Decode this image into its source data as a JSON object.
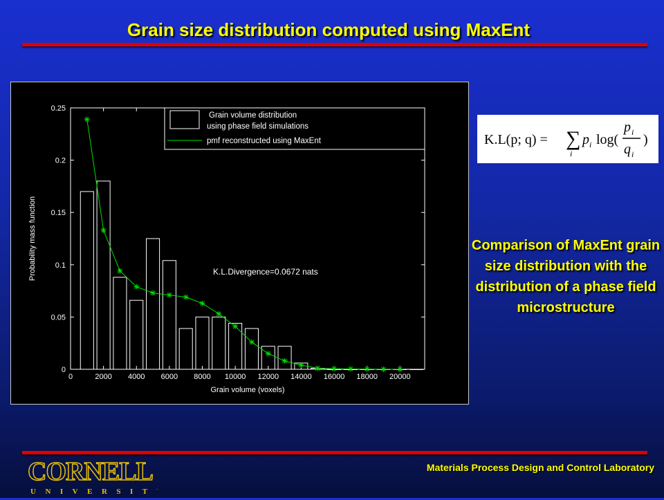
{
  "slide": {
    "title": "Grain size distribution computed using MaxEnt",
    "comparison_text": "Comparison of MaxEnt grain size distribution with the distribution of a phase field microstructure",
    "footer_lab": "Materials Process Design and Control Laboratory",
    "logo": {
      "word": "CORNELL",
      "sub": "UNIVERSITY"
    },
    "formula": {
      "lhs": "K.L(p; q) =",
      "sum": "∑",
      "sum_index": "i",
      "p": "p",
      "q": "q",
      "sub_i": "i",
      "log": "log(",
      "close": ")"
    },
    "colors": {
      "title": "#ffff00",
      "accent_line": "#e00000",
      "series_line": "#00e000"
    }
  },
  "chart_data": {
    "type": "bar",
    "xlabel": "Grain volume (voxels)",
    "ylabel": "Probability mass function",
    "xlim": [
      0,
      21500
    ],
    "ylim": [
      0,
      0.25
    ],
    "xticks": [
      0,
      2000,
      4000,
      6000,
      8000,
      10000,
      12000,
      14000,
      16000,
      18000,
      20000
    ],
    "yticks": [
      0,
      0.05,
      0.1,
      0.15,
      0.2,
      0.25
    ],
    "ytick_labels": [
      "0",
      "0.05",
      "0.1",
      "0.15",
      "0.2",
      "0.25"
    ],
    "annotation": "K.L.Divergence=0.0672 nats",
    "legend": {
      "position": "top-right",
      "bar_label_1": "Grain volume distribution",
      "bar_label_2": "using phase field simulations",
      "line_label": "pmf reconstructed using MaxEnt"
    },
    "bar_width": 800,
    "bars": {
      "x": [
        1000,
        2000,
        3000,
        4000,
        5000,
        6000,
        7000,
        8000,
        9000,
        10000,
        11000,
        12000,
        13000,
        14000,
        15000,
        16000,
        17000,
        18000,
        19000,
        20000,
        21000
      ],
      "values": [
        0.17,
        0.18,
        0.088,
        0.066,
        0.125,
        0.104,
        0.039,
        0.05,
        0.05,
        0.044,
        0.039,
        0.022,
        0.022,
        0.006,
        0.001,
        0.0,
        0.0,
        0.0,
        0.0,
        0.0,
        0.0
      ]
    },
    "line": {
      "x": [
        1000,
        2000,
        3000,
        4000,
        5000,
        6000,
        7000,
        8000,
        9000,
        10000,
        11000,
        12000,
        13000,
        14000,
        15000,
        16000,
        17000,
        18000,
        19000,
        20000
      ],
      "values": [
        0.239,
        0.133,
        0.094,
        0.079,
        0.073,
        0.071,
        0.069,
        0.063,
        0.053,
        0.041,
        0.026,
        0.015,
        0.008,
        0.004,
        0.001,
        0.0005,
        0.0003,
        0.0002,
        0.0001,
        0.0
      ]
    }
  }
}
